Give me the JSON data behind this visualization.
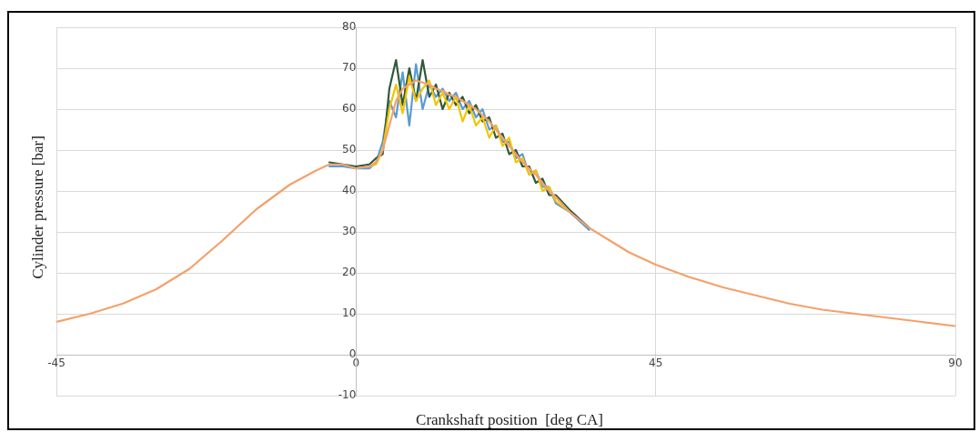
{
  "chart_data": {
    "type": "line",
    "xlabel": "Crankshaft position  [deg CA]",
    "ylabel": "Cylinder  pressure [bar]",
    "x": [
      -45,
      -40,
      -35,
      -30,
      -25,
      -20,
      -15,
      -10,
      -6,
      -4,
      -2,
      0,
      2,
      3,
      4,
      5,
      6,
      7,
      8,
      9,
      10,
      11,
      12,
      13,
      14,
      15,
      16,
      17,
      18,
      19,
      20,
      21,
      22,
      23,
      24,
      25,
      26,
      27,
      28,
      29,
      30,
      32,
      35,
      38,
      41,
      45,
      50,
      55,
      60,
      65,
      70,
      75,
      80,
      85,
      90
    ],
    "xlim": [
      -45,
      90
    ],
    "xticks": [
      -45,
      0,
      45,
      90
    ],
    "ylim": [
      -10,
      80
    ],
    "yticks": [
      -10,
      0,
      10,
      20,
      30,
      40,
      50,
      60,
      70,
      80
    ],
    "grid": true,
    "legend": false,
    "marker": "none",
    "line_style": "solid",
    "series": [
      {
        "color": "#5b9bd5",
        "values": [
          null,
          null,
          null,
          null,
          null,
          null,
          null,
          null,
          null,
          46,
          46,
          45.5,
          45.5,
          47,
          52,
          62,
          58,
          69,
          56,
          71,
          60,
          66,
          63,
          65,
          62,
          64,
          60,
          62,
          58,
          60,
          55,
          56,
          52,
          52,
          48,
          49,
          44,
          45,
          41,
          41,
          37,
          35,
          30.5,
          null,
          null,
          null,
          null,
          null,
          null,
          null,
          null,
          null,
          null,
          null,
          null
        ]
      },
      {
        "color": "#2f5a3a",
        "values": [
          null,
          null,
          null,
          null,
          null,
          null,
          null,
          null,
          null,
          47,
          46.5,
          46,
          46.5,
          48,
          49,
          65,
          72,
          61,
          70,
          62,
          72,
          63,
          66,
          60,
          64,
          61,
          63,
          59,
          61,
          57,
          58,
          53,
          54,
          49,
          50,
          46,
          46,
          42,
          43,
          39,
          39,
          35.5,
          31,
          null,
          null,
          null,
          null,
          null,
          null,
          null,
          null,
          null,
          null,
          null,
          null
        ]
      },
      {
        "color": "#f2c500",
        "values": [
          null,
          null,
          null,
          null,
          null,
          null,
          null,
          null,
          null,
          null,
          null,
          null,
          46,
          46.5,
          50,
          60,
          66,
          59,
          68,
          62,
          65,
          67,
          61,
          64,
          60,
          63,
          57,
          61,
          56,
          58,
          53,
          56,
          51,
          53,
          47,
          48,
          44,
          45,
          40,
          41,
          37.5,
          35,
          null,
          null,
          null,
          null,
          null,
          null,
          null,
          null,
          null,
          null,
          null,
          null,
          null
        ]
      },
      {
        "color": "#f4a16b",
        "values": [
          8,
          10,
          12.5,
          16,
          21,
          28,
          35.5,
          41.5,
          45,
          46.5,
          46.5,
          45.5,
          46,
          47,
          50,
          56,
          62,
          65,
          66,
          67,
          66.5,
          66,
          65,
          64.5,
          63.5,
          63,
          62,
          61,
          60,
          58.5,
          57,
          55,
          53,
          51,
          49,
          47,
          45.5,
          44,
          42,
          40,
          38.5,
          35,
          31,
          28,
          25,
          22,
          19,
          16.5,
          14.5,
          12.5,
          11,
          10,
          9,
          8,
          7
        ]
      }
    ]
  }
}
